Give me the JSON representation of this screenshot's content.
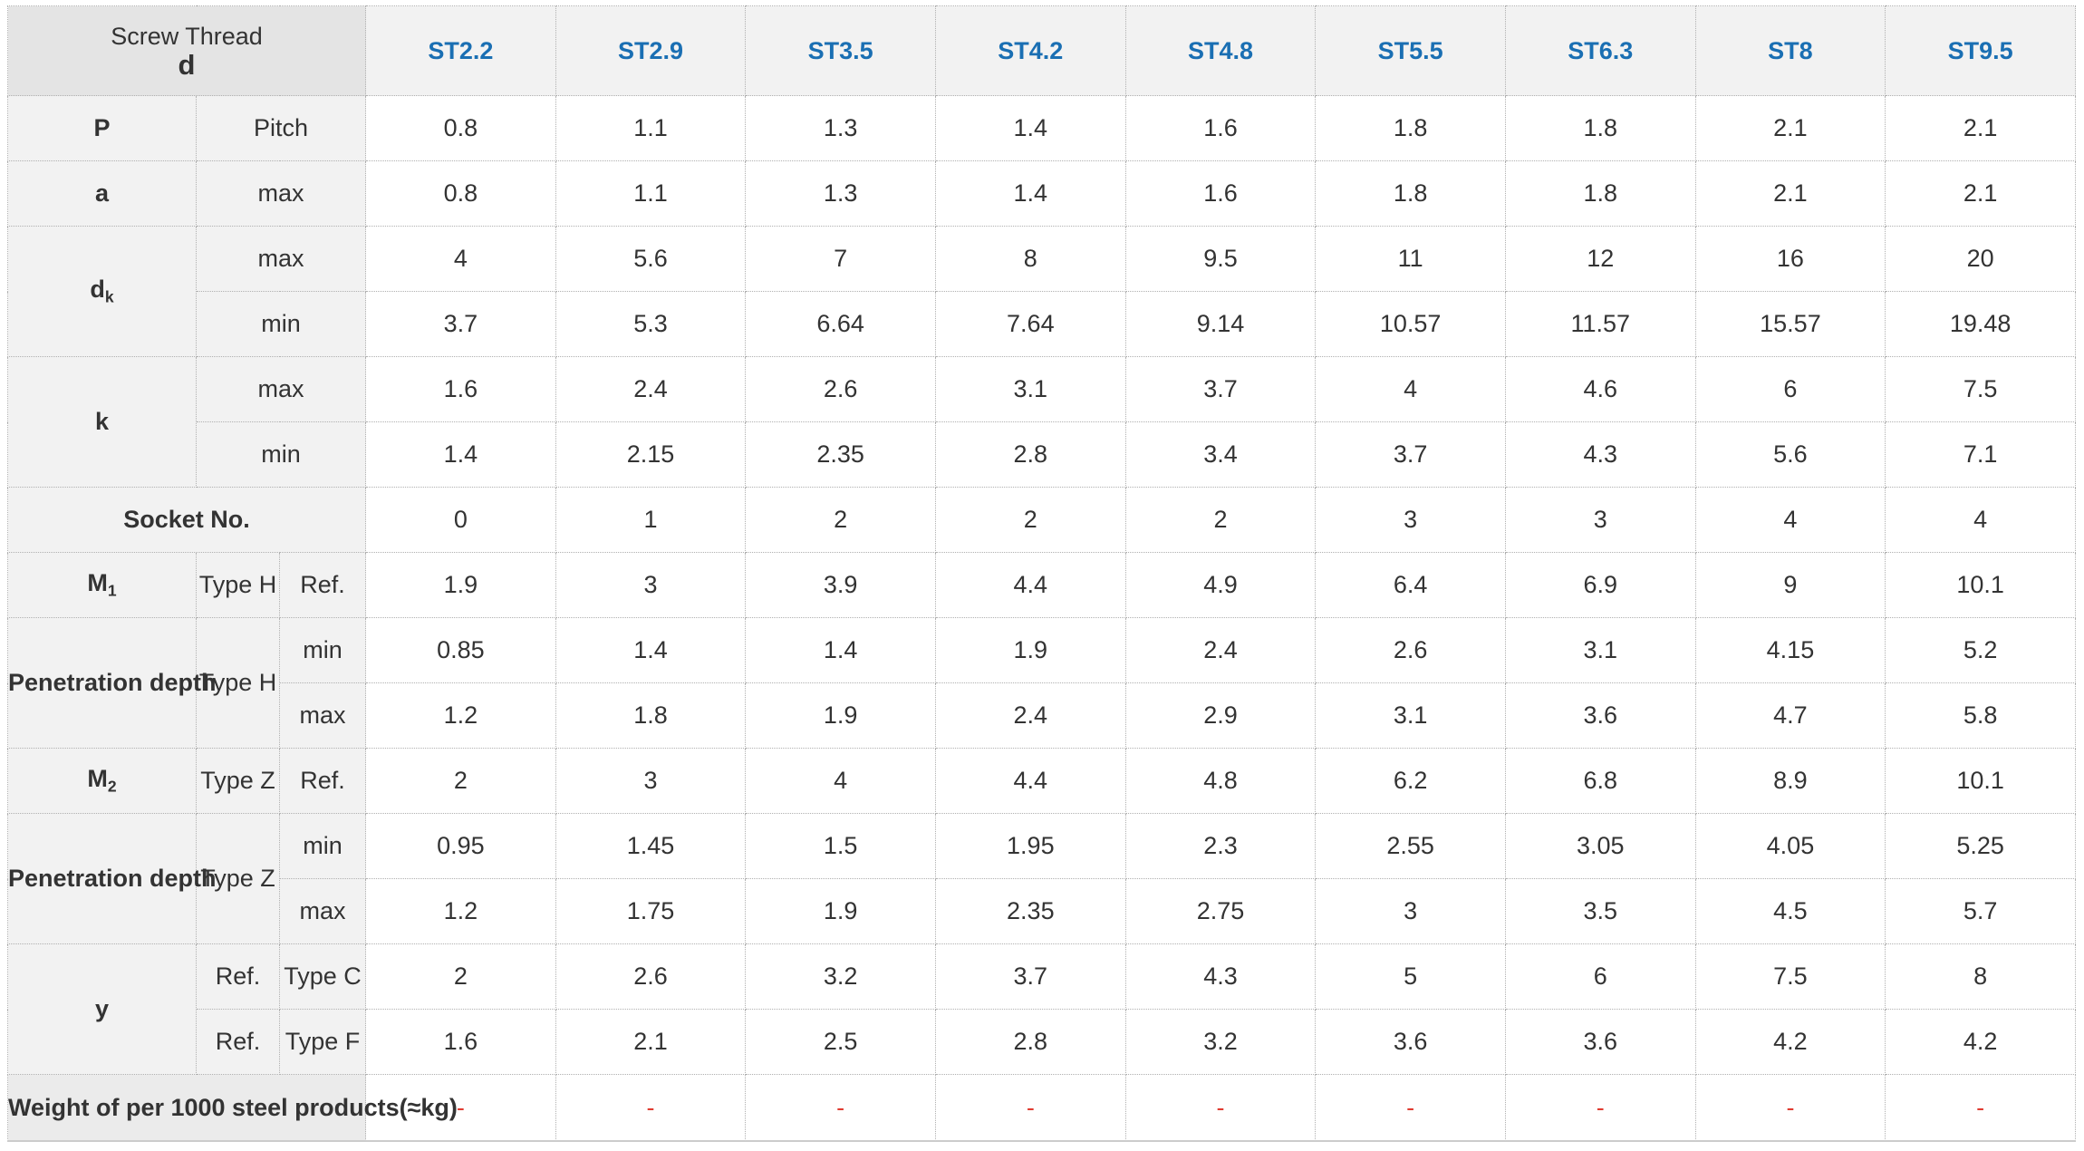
{
  "header": {
    "label_line1": "Screw Thread",
    "label_line2": "d",
    "columns": [
      "ST2.2",
      "ST2.9",
      "ST3.5",
      "ST4.2",
      "ST4.8",
      "ST5.5",
      "ST6.3",
      "ST8",
      "ST9.5"
    ]
  },
  "rows": {
    "pitch": {
      "symbol": "P",
      "label": "Pitch",
      "values": [
        "0.8",
        "1.1",
        "1.3",
        "1.4",
        "1.6",
        "1.8",
        "1.8",
        "2.1",
        "2.1"
      ]
    },
    "a_max": {
      "symbol": "a",
      "label": "max",
      "values": [
        "0.8",
        "1.1",
        "1.3",
        "1.4",
        "1.6",
        "1.8",
        "1.8",
        "2.1",
        "2.1"
      ]
    },
    "dk": {
      "symbol": "d",
      "symbol_sub": "k",
      "max_label": "max",
      "max": [
        "4",
        "5.6",
        "7",
        "8",
        "9.5",
        "11",
        "12",
        "16",
        "20"
      ],
      "min_label": "min",
      "min": [
        "3.7",
        "5.3",
        "6.64",
        "7.64",
        "9.14",
        "10.57",
        "11.57",
        "15.57",
        "19.48"
      ]
    },
    "k": {
      "symbol": "k",
      "max_label": "max",
      "max": [
        "1.6",
        "2.4",
        "2.6",
        "3.1",
        "3.7",
        "4",
        "4.6",
        "6",
        "7.5"
      ],
      "min_label": "min",
      "min": [
        "1.4",
        "2.15",
        "2.35",
        "2.8",
        "3.4",
        "3.7",
        "4.3",
        "5.6",
        "7.1"
      ]
    },
    "socket": {
      "label": "Socket No.",
      "values": [
        "0",
        "1",
        "2",
        "2",
        "2",
        "3",
        "3",
        "4",
        "4"
      ]
    },
    "m1": {
      "symbol": "M",
      "symbol_sub": "1",
      "type": "Type H",
      "ref": "Ref.",
      "values": [
        "1.9",
        "3",
        "3.9",
        "4.4",
        "4.9",
        "6.4",
        "6.9",
        "9",
        "10.1"
      ]
    },
    "pen_h": {
      "label": "Penetration depth",
      "type": "Type H",
      "min_label": "min",
      "min": [
        "0.85",
        "1.4",
        "1.4",
        "1.9",
        "2.4",
        "2.6",
        "3.1",
        "4.15",
        "5.2"
      ],
      "max_label": "max",
      "max": [
        "1.2",
        "1.8",
        "1.9",
        "2.4",
        "2.9",
        "3.1",
        "3.6",
        "4.7",
        "5.8"
      ]
    },
    "m2": {
      "symbol": "M",
      "symbol_sub": "2",
      "type": "Type Z",
      "ref": "Ref.",
      "values": [
        "2",
        "3",
        "4",
        "4.4",
        "4.8",
        "6.2",
        "6.8",
        "8.9",
        "10.1"
      ]
    },
    "pen_z": {
      "label": "Penetration depth",
      "type": "Type Z",
      "min_label": "min",
      "min": [
        "0.95",
        "1.45",
        "1.5",
        "1.95",
        "2.3",
        "2.55",
        "3.05",
        "4.05",
        "5.25"
      ],
      "max_label": "max",
      "max": [
        "1.2",
        "1.75",
        "1.9",
        "2.35",
        "2.75",
        "3",
        "3.5",
        "4.5",
        "5.7"
      ]
    },
    "y": {
      "symbol": "y",
      "c_ref": "Ref.",
      "c_type": "Type C",
      "c": [
        "2",
        "2.6",
        "3.2",
        "3.7",
        "4.3",
        "5",
        "6",
        "7.5",
        "8"
      ],
      "f_ref": "Ref.",
      "f_type": "Type F",
      "f": [
        "1.6",
        "2.1",
        "2.5",
        "2.8",
        "3.2",
        "3.6",
        "3.6",
        "4.2",
        "4.2"
      ]
    },
    "weight": {
      "label": "Weight of per 1000 steel products(≈kg)",
      "values": [
        "-",
        "-",
        "-",
        "-",
        "-",
        "-",
        "-",
        "-",
        "-"
      ]
    }
  },
  "colors": {
    "header_text": "#1a6fb3",
    "dash": "#e03c31",
    "label_bg": "#f2f2f2"
  }
}
